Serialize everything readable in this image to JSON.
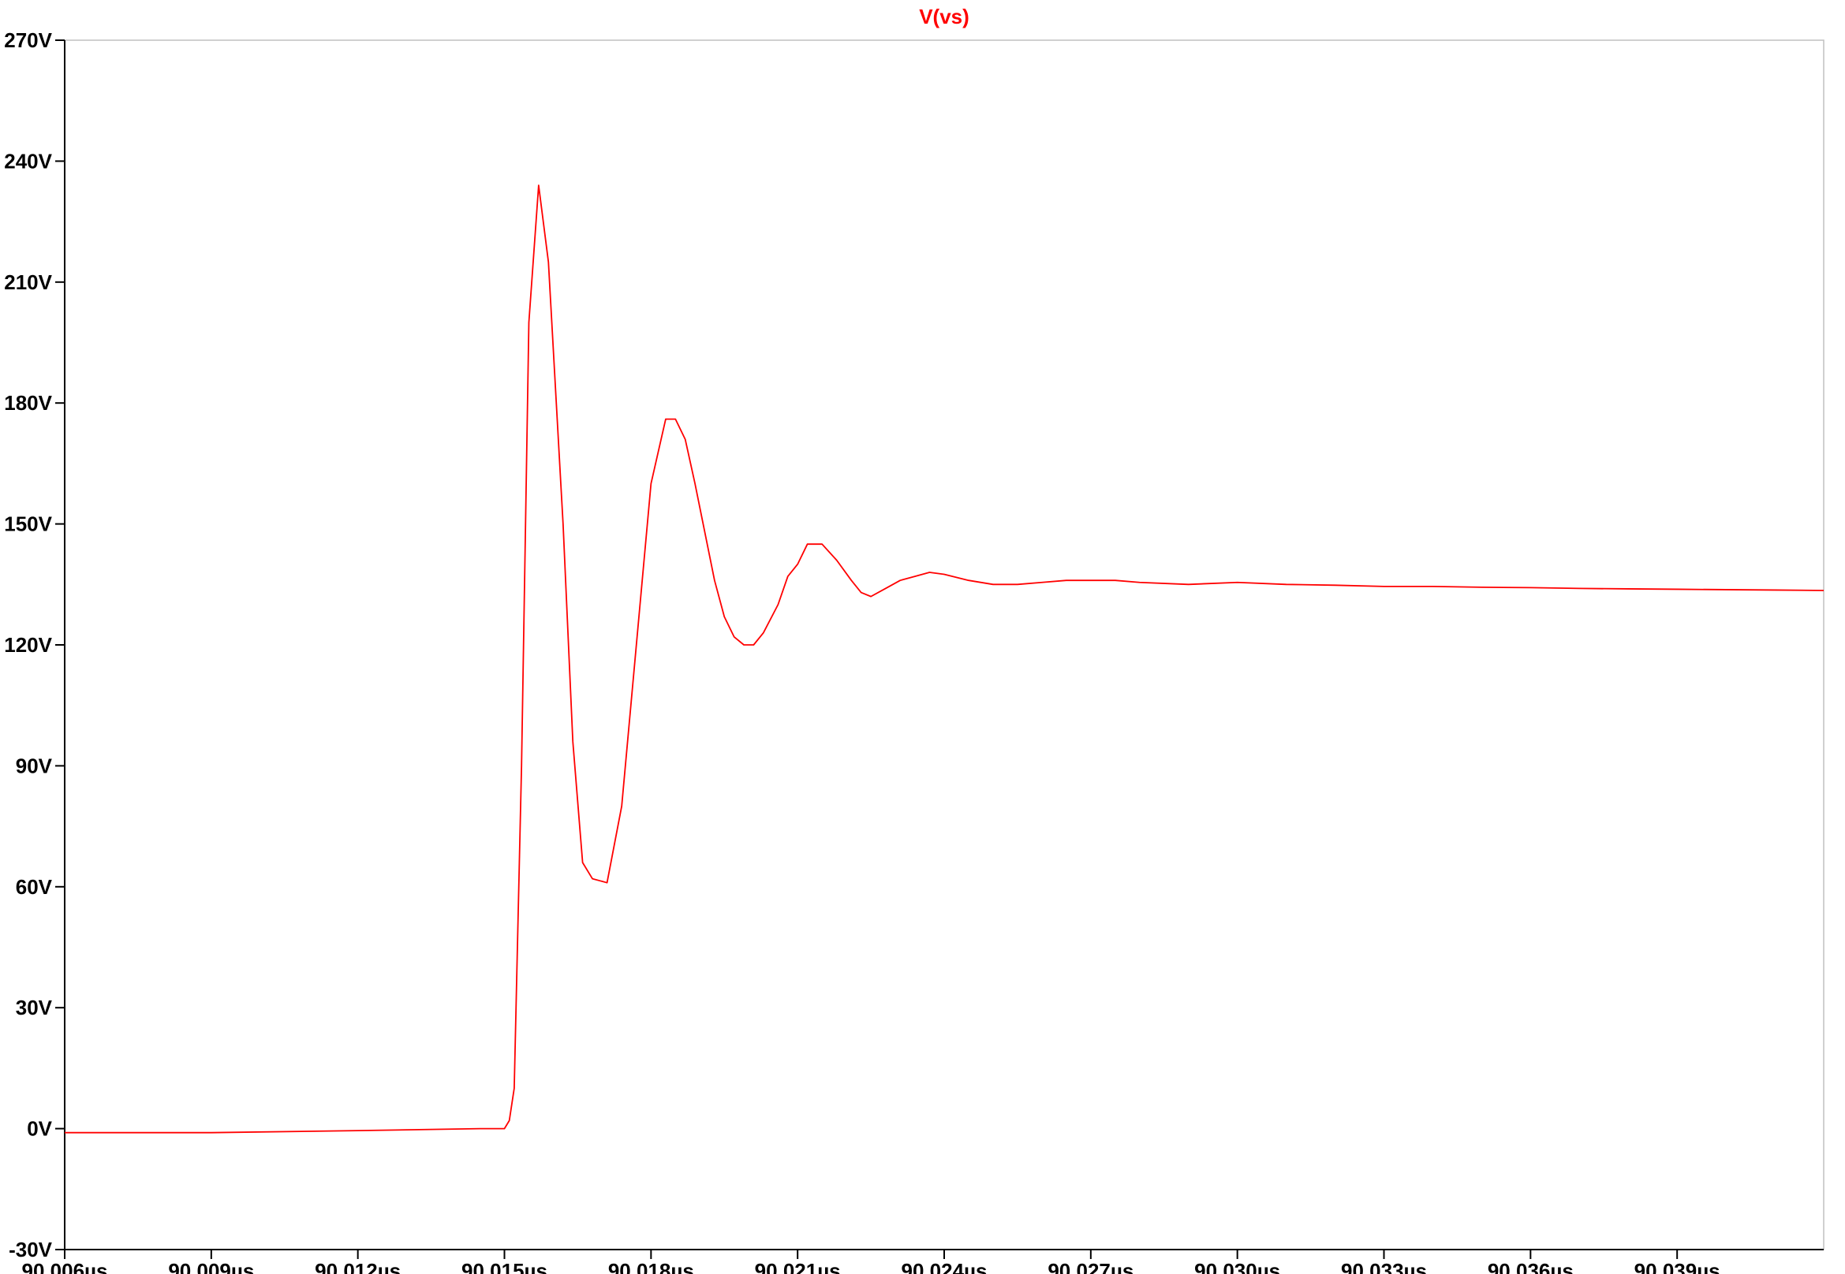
{
  "chart_data": {
    "type": "line",
    "title": "V(vs)",
    "xlabel": "",
    "ylabel": "",
    "xlim": [
      90.006,
      90.042
    ],
    "ylim": [
      -30,
      270
    ],
    "x_unit": "µs",
    "y_unit": "V",
    "xticks": [
      "90.006µs",
      "90.009µs",
      "90.012µs",
      "90.015µs",
      "90.018µs",
      "90.021µs",
      "90.024µs",
      "90.027µs",
      "90.030µs",
      "90.033µs",
      "90.036µs",
      "90.039µs"
    ],
    "xtick_values": [
      90.006,
      90.009,
      90.012,
      90.015,
      90.018,
      90.021,
      90.024,
      90.027,
      90.03,
      90.033,
      90.036,
      90.039
    ],
    "yticks": [
      "270V",
      "240V",
      "210V",
      "180V",
      "150V",
      "120V",
      "90V",
      "60V",
      "30V",
      "0V",
      "-30V"
    ],
    "ytick_values": [
      270,
      240,
      210,
      180,
      150,
      120,
      90,
      60,
      30,
      0,
      -30
    ],
    "grid": false,
    "legend": "none",
    "series": [
      {
        "name": "V(vs)",
        "color": "#ff0000",
        "x": [
          90.006,
          90.009,
          90.012,
          90.0145,
          90.015,
          90.0151,
          90.0152,
          90.01535,
          90.0155,
          90.0157,
          90.0159,
          90.0162,
          90.0164,
          90.0166,
          90.0168,
          90.0171,
          90.0174,
          90.0177,
          90.018,
          90.0183,
          90.0185,
          90.0187,
          90.0189,
          90.0191,
          90.0193,
          90.0195,
          90.0197,
          90.0199,
          90.0201,
          90.0203,
          90.0206,
          90.0208,
          90.021,
          90.0212,
          90.0215,
          90.0218,
          90.0221,
          90.0223,
          90.0225,
          90.0228,
          90.0231,
          90.0234,
          90.0237,
          90.024,
          90.0245,
          90.025,
          90.0255,
          90.026,
          90.0265,
          90.027,
          90.0275,
          90.028,
          90.029,
          90.03,
          90.031,
          90.032,
          90.033,
          90.034,
          90.035,
          90.036,
          90.037,
          90.038,
          90.039,
          90.04,
          90.041,
          90.042
        ],
        "y": [
          -1,
          -1,
          -0.5,
          0,
          0,
          2,
          10,
          90,
          200,
          234,
          215,
          150,
          96,
          66,
          62,
          61,
          80,
          120,
          160,
          176,
          176,
          171,
          160,
          148,
          136,
          127,
          122,
          120,
          120,
          123,
          130,
          137,
          140,
          145,
          145,
          141,
          136,
          133,
          132,
          134,
          136,
          137,
          138,
          137.5,
          136,
          135,
          135,
          135.5,
          136,
          136,
          136,
          135.5,
          135,
          135.5,
          135,
          134.8,
          134.5,
          134.5,
          134.3,
          134.2,
          134,
          133.9,
          133.8,
          133.7,
          133.6,
          133.5
        ]
      }
    ]
  }
}
